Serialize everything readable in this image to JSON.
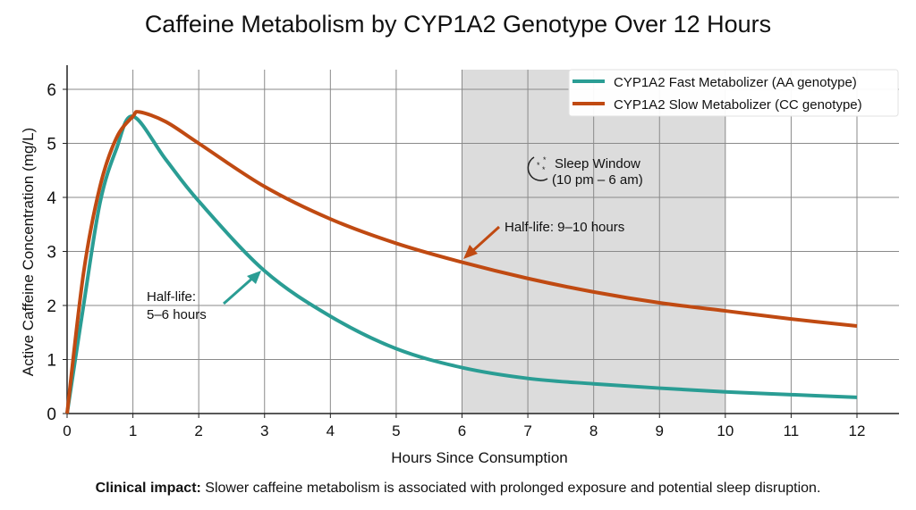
{
  "chart_data": {
    "type": "line",
    "title": "Caffeine Metabolism by CYP1A2 Genotype Over 12 Hours",
    "xlabel": "Hours Since Consumption",
    "ylabel": "Active Caffeine Concentration (mg/L)",
    "xlim": [
      0,
      12
    ],
    "ylim": [
      0,
      6
    ],
    "xticks": [
      "0",
      "1",
      "2",
      "3",
      "4",
      "5",
      "6",
      "7",
      "8",
      "9",
      "10",
      "11",
      "12"
    ],
    "yticks": [
      "0",
      "1",
      "2",
      "3",
      "4",
      "5",
      "6"
    ],
    "grid": true,
    "legend_position": "top-right",
    "series": [
      {
        "name": "CYP1A2 Fast Metabolizer (AA genotype)",
        "color": "#2a9d94",
        "x": [
          0,
          0.25,
          0.5,
          0.75,
          1,
          1.5,
          2,
          3,
          4,
          5,
          6,
          7,
          8,
          9,
          10,
          11,
          12
        ],
        "y": [
          0,
          2.0,
          3.9,
          4.9,
          5.5,
          4.7,
          3.93,
          2.64,
          1.8,
          1.2,
          0.85,
          0.65,
          0.55,
          0.47,
          0.4,
          0.35,
          0.3
        ]
      },
      {
        "name": "CYP1A2 Slow Metabolizer (CC genotype)",
        "color": "#c04a12",
        "x": [
          0,
          0.25,
          0.5,
          0.75,
          1,
          1.1,
          1.5,
          2,
          3,
          4,
          5,
          6,
          7,
          8,
          9,
          10,
          11,
          12
        ],
        "y": [
          0,
          2.6,
          4.2,
          5.1,
          5.5,
          5.58,
          5.4,
          5.0,
          4.2,
          3.6,
          3.15,
          2.8,
          2.5,
          2.25,
          2.05,
          1.9,
          1.75,
          1.62
        ]
      }
    ],
    "shaded_region": {
      "x": [
        6,
        10
      ],
      "label": "Sleep Window",
      "sublabel": "(10 pm – 6 am)",
      "icon": "moon-stars-icon",
      "color": "#dcdcdc"
    },
    "annotations": [
      {
        "line1": "Half-life:",
        "line2": "5–6 hours",
        "series": 0
      },
      {
        "line1": "Half-life: 9–10 hours",
        "series": 1
      }
    ]
  },
  "footer": {
    "bold": "Clinical impact:",
    "text": " Slower caffeine metabolism is associated with prolonged exposure and potential sleep disruption."
  }
}
